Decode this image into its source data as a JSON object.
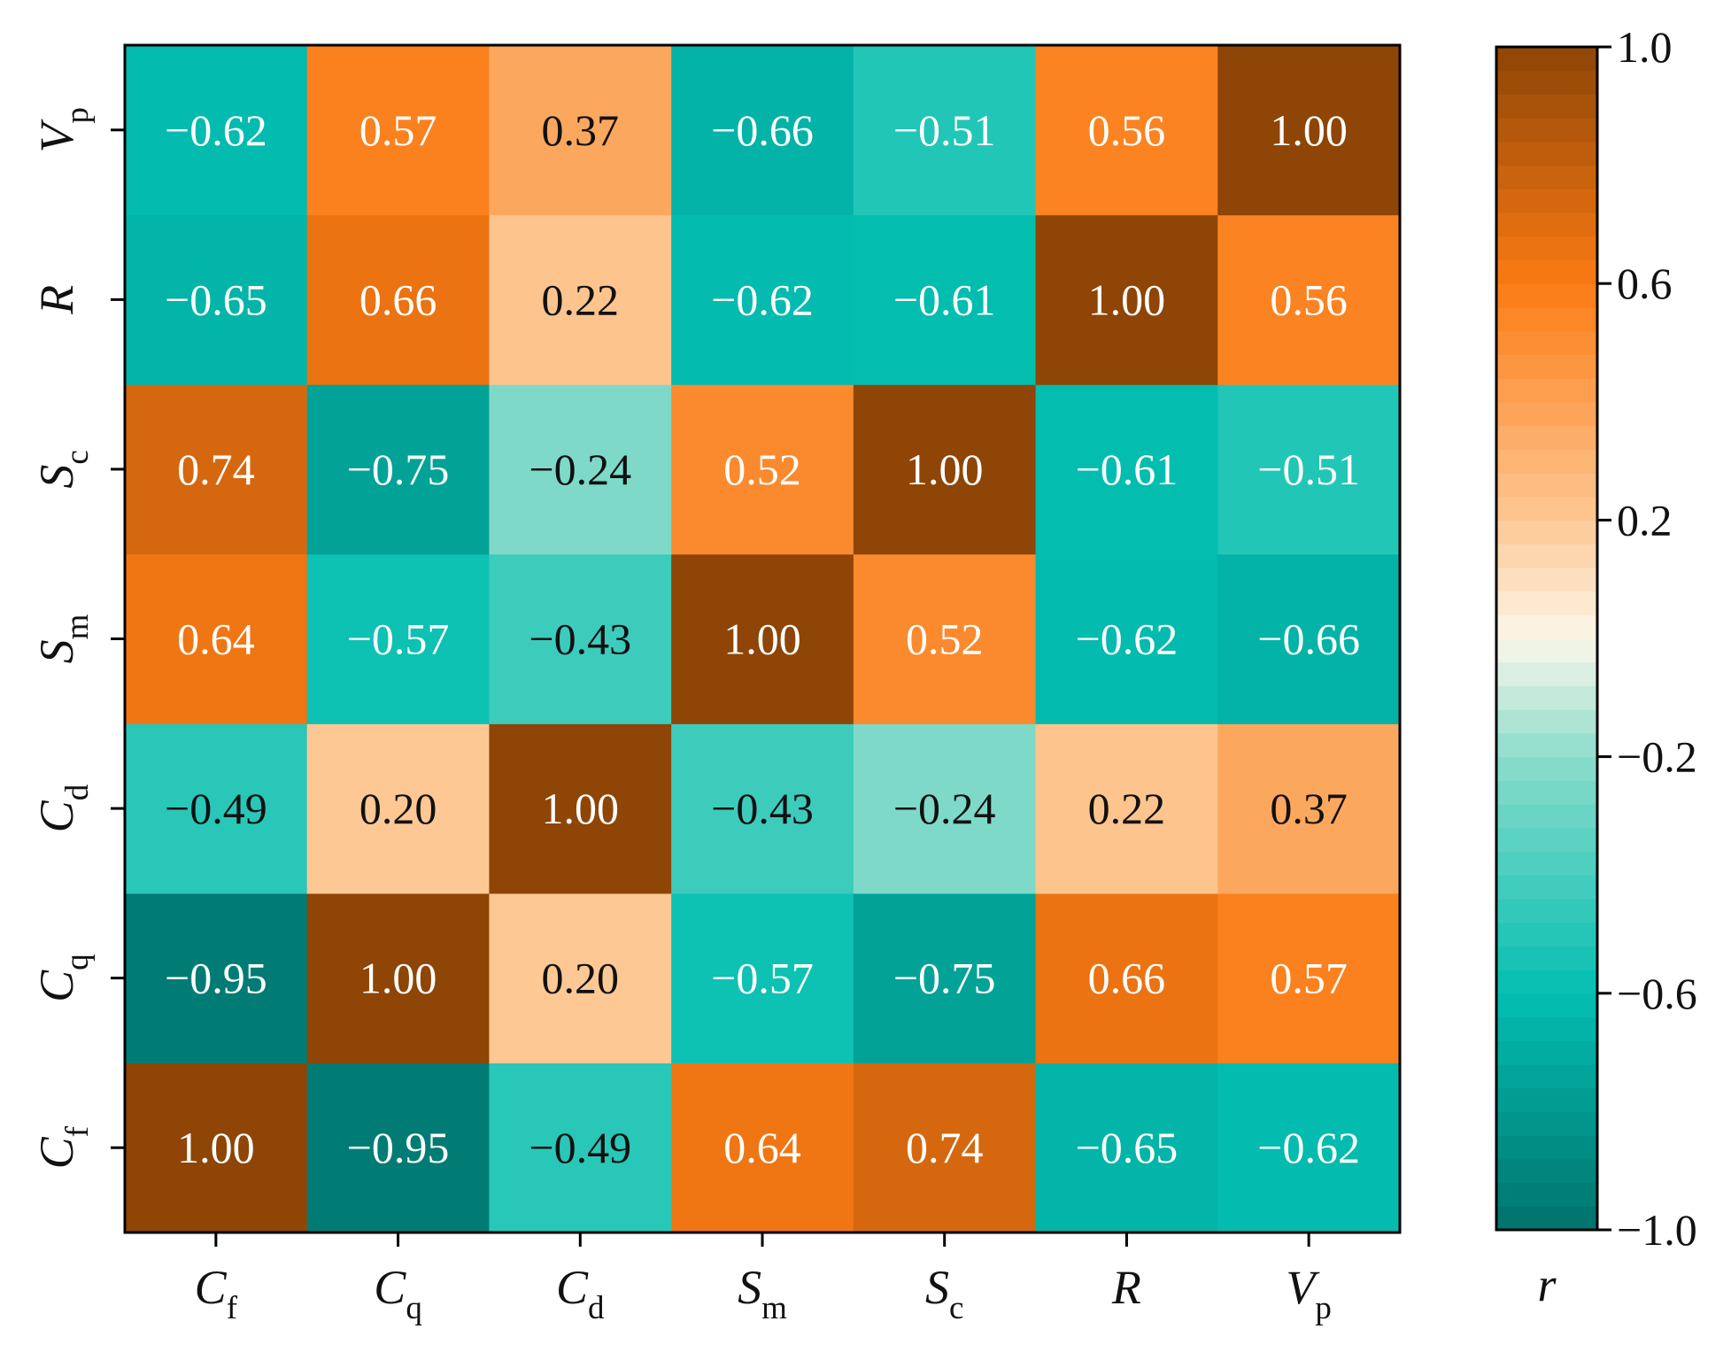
{
  "chart_data": {
    "type": "heatmap",
    "title": "",
    "variables": [
      {
        "id": "Cf",
        "base": "C",
        "sub": "f"
      },
      {
        "id": "Cq",
        "base": "C",
        "sub": "q"
      },
      {
        "id": "Cd",
        "base": "C",
        "sub": "d"
      },
      {
        "id": "Sm",
        "base": "S",
        "sub": "m"
      },
      {
        "id": "Sc",
        "base": "S",
        "sub": "c"
      },
      {
        "id": "R",
        "base": "R",
        "sub": ""
      },
      {
        "id": "Vp",
        "base": "V",
        "sub": "p"
      }
    ],
    "matrix": [
      [
        1.0,
        -0.95,
        -0.49,
        0.64,
        0.74,
        -0.65,
        -0.62
      ],
      [
        -0.95,
        1.0,
        0.2,
        -0.57,
        -0.75,
        0.66,
        0.57
      ],
      [
        -0.49,
        0.2,
        1.0,
        -0.43,
        -0.24,
        0.22,
        0.37
      ],
      [
        0.64,
        -0.57,
        -0.43,
        1.0,
        0.52,
        -0.62,
        -0.66
      ],
      [
        0.74,
        -0.75,
        -0.24,
        0.52,
        1.0,
        -0.61,
        -0.51
      ],
      [
        -0.65,
        0.66,
        0.22,
        -0.62,
        -0.61,
        1.0,
        0.56
      ],
      [
        -0.62,
        0.57,
        0.37,
        -0.66,
        -0.51,
        0.56,
        1.0
      ]
    ],
    "value_labels": [
      [
        "1.00",
        "−0.95",
        "−0.49",
        "0.64",
        "0.74",
        "−0.65",
        "−0.62"
      ],
      [
        "−0.95",
        "1.00",
        "0.20",
        "−0.57",
        "−0.75",
        "0.66",
        "0.57"
      ],
      [
        "−0.49",
        "0.20",
        "1.00",
        "−0.43",
        "−0.24",
        "0.22",
        "0.37"
      ],
      [
        "0.64",
        "−0.57",
        "−0.43",
        "1.00",
        "0.52",
        "−0.62",
        "−0.66"
      ],
      [
        "0.74",
        "−0.75",
        "−0.24",
        "0.52",
        "1.00",
        "−0.61",
        "−0.51"
      ],
      [
        "−0.65",
        "0.66",
        "0.22",
        "−0.62",
        "−0.61",
        "1.00",
        "0.56"
      ],
      [
        "−0.62",
        "0.57",
        "0.37",
        "−0.66",
        "−0.51",
        "0.56",
        "1.00"
      ]
    ],
    "y_order": "bottom-to-top",
    "colorbar": {
      "label": "r",
      "vmin": -1.0,
      "vmax": 1.0,
      "ticks": [
        1.0,
        0.6,
        0.2,
        -0.2,
        -0.6,
        -1.0
      ],
      "tick_labels": [
        "1.0",
        "0.6",
        "0.2",
        "−0.2",
        "−0.6",
        "−1.0"
      ],
      "steps": 50
    },
    "colors": {
      "stops": [
        {
          "v": -1.0,
          "c": "#01726b"
        },
        {
          "v": -0.6,
          "c": "#03bfb1"
        },
        {
          "v": -0.2,
          "c": "#8cdccb"
        },
        {
          "v": 0.0,
          "c": "#fbf7ea"
        },
        {
          "v": 0.2,
          "c": "#fdc894"
        },
        {
          "v": 0.6,
          "c": "#fb7b14"
        },
        {
          "v": 1.0,
          "c": "#8e4506"
        }
      ],
      "text_dark": "#111111",
      "text_light": "#ffffff"
    }
  }
}
